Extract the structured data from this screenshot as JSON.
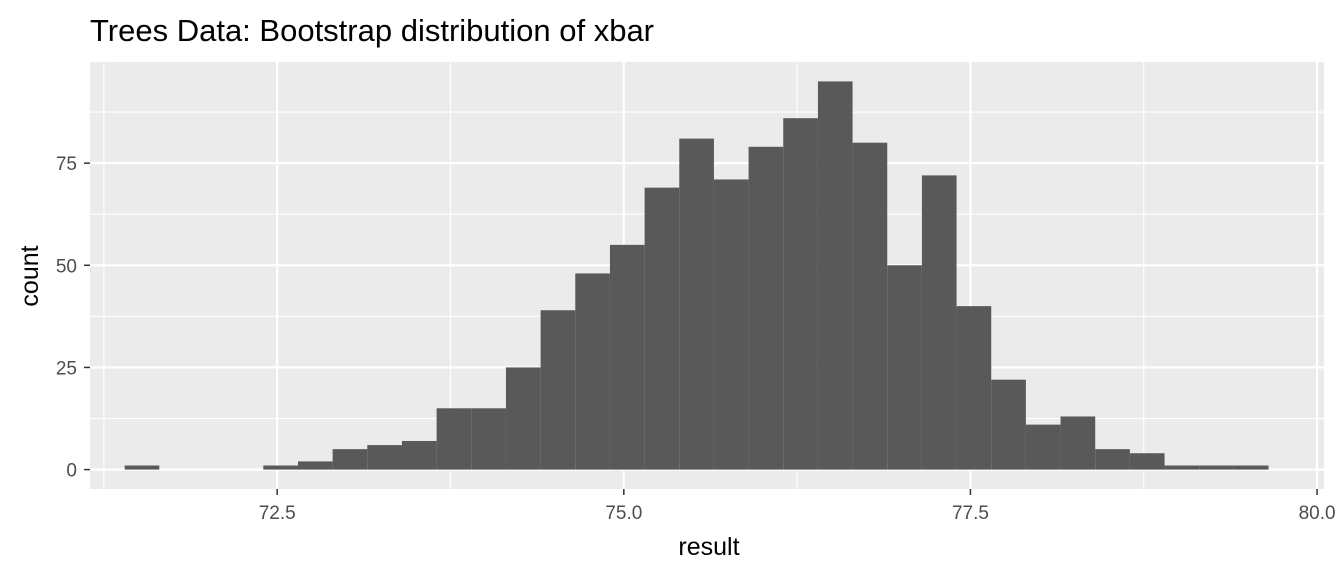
{
  "chart_data": {
    "type": "bar",
    "subtype": "histogram",
    "title": "Trees Data: Bootstrap distribution of xbar",
    "xlabel": "result",
    "ylabel": "count",
    "xlim": [
      71.15,
      80.05
    ],
    "ylim": [
      -4.75,
      99.75
    ],
    "x_ticks": [
      72.5,
      75.0,
      77.5,
      80.0
    ],
    "x_tick_labels": [
      "72.5",
      "75.0",
      "77.5",
      "80.0"
    ],
    "y_ticks": [
      0,
      25,
      50,
      75
    ],
    "y_tick_labels": [
      "0",
      "25",
      "50",
      "75"
    ],
    "grid": true,
    "legend": "none",
    "bar_color": "#595959",
    "panel_color": "#ebebeb",
    "grid_color": "#ffffff",
    "bin_width": 0.25,
    "bin_starts": [
      71.4,
      71.65,
      71.9,
      72.15,
      72.4,
      72.65,
      72.9,
      73.15,
      73.4,
      73.65,
      73.9,
      74.15,
      74.4,
      74.65,
      74.9,
      75.15,
      75.4,
      75.65,
      75.9,
      76.15,
      76.4,
      76.65,
      76.9,
      77.15,
      77.4,
      77.65,
      77.9,
      78.15,
      78.4,
      78.65,
      78.9,
      79.15,
      79.4
    ],
    "counts": [
      1,
      0,
      0,
      0,
      1,
      2,
      5,
      6,
      7,
      15,
      15,
      25,
      39,
      48,
      55,
      69,
      81,
      71,
      79,
      86,
      95,
      80,
      50,
      72,
      40,
      22,
      11,
      13,
      5,
      4,
      1,
      1,
      1
    ]
  }
}
